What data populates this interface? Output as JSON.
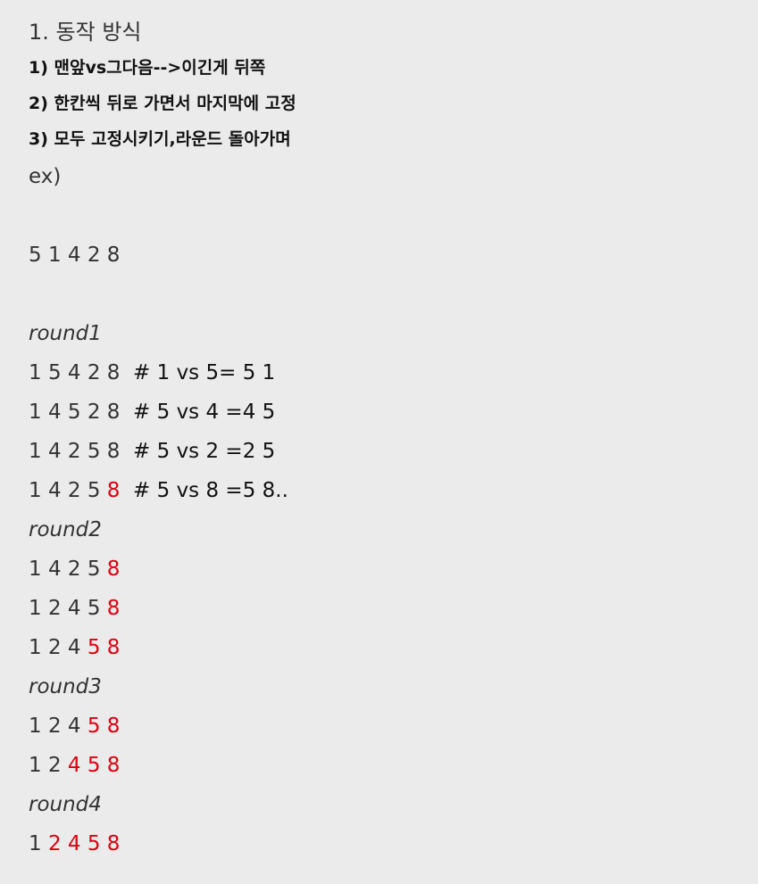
{
  "heading": "1. 동작 방식",
  "steps": [
    "1) 맨앞vs그다음-->이긴게 뒤쪽",
    "2) 한칸씩 뒤로 가면서 마지막에 고정",
    "3) 모두 고정시키기,라운드 돌아가며"
  ],
  "example_label": "ex)",
  "initial": "5 1 4 2 8",
  "rows": [
    {
      "kind": "round",
      "text": "round1"
    },
    {
      "kind": "seq",
      "plain": "1 5 4 2 8 ",
      "fixed": "",
      "comment": " # 1 vs 5= 5 1"
    },
    {
      "kind": "seq",
      "plain": "1 4 5 2 8 ",
      "fixed": "",
      "comment": " # 5 vs 4 =4 5"
    },
    {
      "kind": "seq",
      "plain": "1 4 2 5 8 ",
      "fixed": "",
      "comment": " # 5 vs 2 =2 5"
    },
    {
      "kind": "seq",
      "plain": "1 4 2 5 ",
      "fixed": "8",
      "comment": "  # 5 vs 8 =5 8.."
    },
    {
      "kind": "round",
      "text": "round2"
    },
    {
      "kind": "seq",
      "plain": "1 4 2 5 ",
      "fixed": "8",
      "comment": ""
    },
    {
      "kind": "seq",
      "plain": "1 2 4 5 ",
      "fixed": "8",
      "comment": ""
    },
    {
      "kind": "seq",
      "plain": "1 2 4 ",
      "fixed": "5 8",
      "comment": ""
    },
    {
      "kind": "round",
      "text": "round3"
    },
    {
      "kind": "seq",
      "plain": "1 2 4 ",
      "fixed": "5 8",
      "comment": ""
    },
    {
      "kind": "seq",
      "plain": "1 2 ",
      "fixed": "4 5 8",
      "comment": ""
    },
    {
      "kind": "round",
      "text": "round4"
    },
    {
      "kind": "seq",
      "plain": "1 ",
      "fixed": "2 4 5 8",
      "comment": ""
    }
  ],
  "colors": {
    "background": "#ebebeb",
    "text": "#333333",
    "fixed": "#e0000f"
  }
}
